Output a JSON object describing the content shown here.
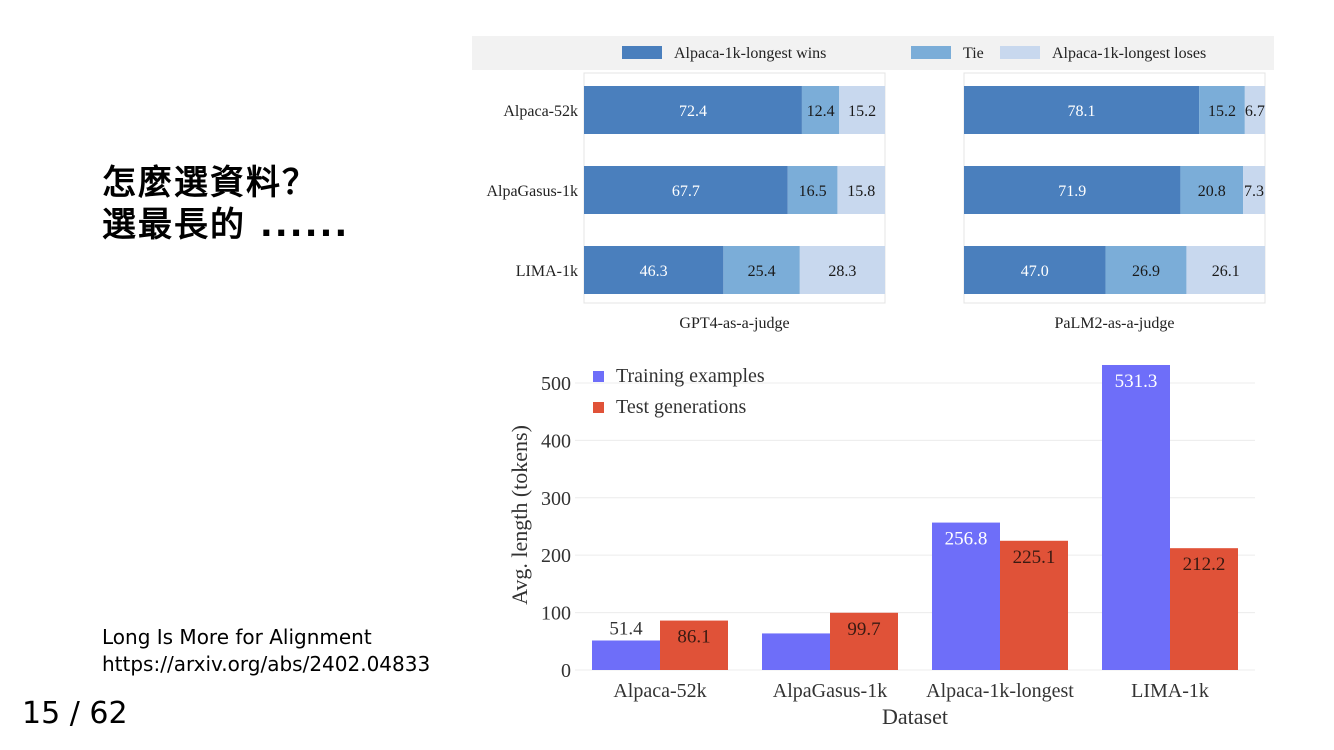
{
  "slide": {
    "title_lines": [
      "怎麼選資料？",
      "選最長的 ......"
    ],
    "citation_lines": [
      "Long Is More for Alignment",
      "https://arxiv.org/abs/2402.04833"
    ],
    "page_number": "15 / 62"
  },
  "chart_data": [
    {
      "type": "bar",
      "orientation": "horizontal",
      "stacked": true,
      "legend_position": "top",
      "categories": [
        "Alpaca-52k",
        "AlpaGasus-1k",
        "LIMA-1k"
      ],
      "panels": [
        {
          "xlabel": "GPT4-as-a-judge",
          "series": [
            {
              "name": "Alpaca-1k-longest wins",
              "color": "#4a7fbd",
              "values": [
                72.4,
                67.7,
                46.3
              ]
            },
            {
              "name": "Tie",
              "color": "#7badd8",
              "values": [
                12.4,
                16.5,
                25.4
              ]
            },
            {
              "name": "Alpaca-1k-longest loses",
              "color": "#c8d8ee",
              "values": [
                15.2,
                15.8,
                28.3
              ]
            }
          ],
          "labels": [
            [
              "72.4",
              "12.4",
              "15.2"
            ],
            [
              "67.7",
              "16.5",
              "15.8"
            ],
            [
              "46.3",
              "25.4",
              "28.3"
            ]
          ]
        },
        {
          "xlabel": "PaLM2-as-a-judge",
          "series": [
            {
              "name": "Alpaca-1k-longest wins",
              "color": "#4a7fbd",
              "values": [
                78.1,
                71.9,
                47.0
              ]
            },
            {
              "name": "Tie",
              "color": "#7badd8",
              "values": [
                15.2,
                20.8,
                26.9
              ]
            },
            {
              "name": "Alpaca-1k-longest loses",
              "color": "#c8d8ee",
              "values": [
                6.7,
                7.3,
                26.1
              ]
            }
          ],
          "labels": [
            [
              "78.1",
              "15.2",
              "6.7"
            ],
            [
              "71.9",
              "20.8",
              "7.3"
            ],
            [
              "47.0",
              "26.9",
              "26.1"
            ]
          ]
        }
      ],
      "legend": [
        "Alpaca-1k-longest wins",
        "Tie",
        "Alpaca-1k-longest loses"
      ],
      "xlim": [
        0,
        100
      ]
    },
    {
      "type": "bar",
      "orientation": "vertical",
      "categories": [
        "Alpaca-52k",
        "AlpaGasus-1k",
        "Alpaca-1k-longest",
        "LIMA-1k"
      ],
      "series": [
        {
          "name": "Training examples",
          "color": "#6e6ef9",
          "values": [
            51.4,
            63.7,
            256.8,
            531.3
          ]
        },
        {
          "name": "Test generations",
          "color": "#e05238",
          "values": [
            86.1,
            99.7,
            225.1,
            212.2
          ]
        }
      ],
      "labels": [
        [
          "51.4",
          "63.7",
          "256.8",
          "531.3"
        ],
        [
          "86.1",
          "99.7",
          "225.1",
          "212.2"
        ]
      ],
      "xlabel": "Dataset",
      "ylabel": "Avg. length (tokens)",
      "yticks": [
        0,
        100,
        200,
        300,
        400,
        500
      ],
      "ylim": [
        0,
        540
      ],
      "grid": true,
      "legend_position": "top-left"
    }
  ]
}
